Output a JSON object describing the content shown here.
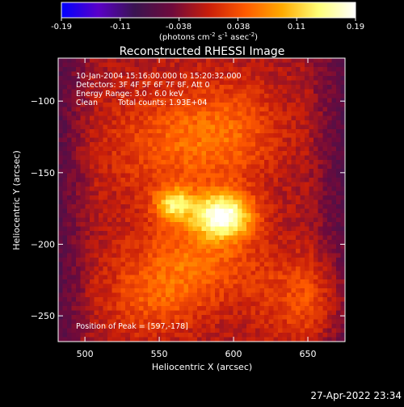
{
  "colorbar": {
    "ticks": [
      "-0.19",
      "-0.11",
      "-0.038",
      "0.038",
      "0.11",
      "0.19"
    ],
    "unit_main": "(photons cm",
    "unit_exp1": "-2",
    "unit_s": " s",
    "unit_exp2": "-1",
    "unit_asec": " asec",
    "unit_exp3": "-2",
    "unit_close": ")",
    "colors": [
      "#0000ff",
      "#5a00c8",
      "#3a1450",
      "#6e0a3c",
      "#c81e0a",
      "#ff5a00",
      "#ffaa00",
      "#ffff78",
      "#ffffff"
    ]
  },
  "chart_data": {
    "type": "heatmap",
    "title": "Reconstructed RHESSI Image",
    "xlabel": "Heliocentric X (arcsec)",
    "ylabel": "Heliocentric Y (arcsec)",
    "xlim": [
      482,
      675
    ],
    "ylim": [
      -268,
      -70
    ],
    "vlim": [
      -0.19,
      0.19
    ],
    "xticks": [
      500,
      550,
      600,
      650
    ],
    "yticks": [
      -100,
      -150,
      -200,
      -250
    ],
    "peak": [
      597,
      -178
    ],
    "sources": [
      {
        "x": 593,
        "y": -180,
        "sx": 14,
        "sy": 11,
        "amp": 0.19
      },
      {
        "x": 560,
        "y": -172,
        "sx": 9,
        "sy": 8,
        "amp": 0.12
      },
      {
        "x": 575,
        "y": -210,
        "sx": 30,
        "sy": 22,
        "amp": 0.07
      },
      {
        "x": 560,
        "y": -130,
        "sx": 35,
        "sy": 30,
        "amp": 0.06
      },
      {
        "x": 650,
        "y": -238,
        "sx": 25,
        "sy": 22,
        "amp": 0.055
      },
      {
        "x": 545,
        "y": -240,
        "sx": 25,
        "sy": 20,
        "amp": 0.05
      },
      {
        "x": 600,
        "y": -120,
        "sx": 25,
        "sy": 25,
        "amp": 0.045
      }
    ]
  },
  "annotations": {
    "line1": "10-Jan-2004 15:16:00.000 to 15:20:32.000",
    "line2": "Detectors: 3F 4F 5F 6F 7F 8F, Att 0",
    "line3": "Energy Range: 3.0 - 6.0 keV",
    "line4_a": "Clean",
    "line4_b": "Total counts: 1.93E+04",
    "peak_label": "Position of Peak = [597,-178]"
  },
  "timestamp": "27-Apr-2022 23:34"
}
